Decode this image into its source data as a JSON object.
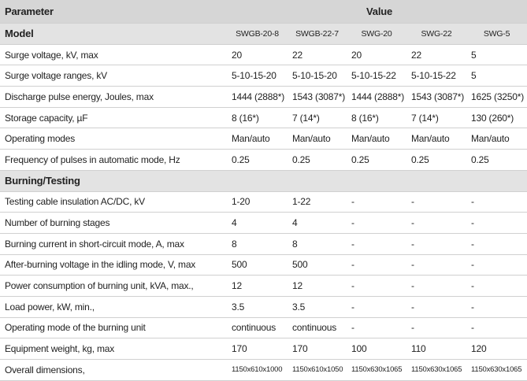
{
  "header": {
    "parameter": "Parameter",
    "value": "Value"
  },
  "sections": [
    {
      "title": "Model",
      "models": [
        "SWGB-20-8",
        "SWGB-22-7",
        "SWG-20",
        "SWG-22",
        "SWG-5"
      ],
      "rows": [
        {
          "label": "Surge voltage, kV, max",
          "cells": [
            "20",
            "22",
            "20",
            "22",
            "5"
          ]
        },
        {
          "label": "Surge voltage ranges, kV",
          "cells": [
            "5-10-15-20",
            "5-10-15-20",
            "5-10-15-22",
            "5-10-15-22",
            "5"
          ]
        },
        {
          "label": "Discharge pulse energy, Joules, max",
          "cells": [
            "1444 (2888*)",
            "1543 (3087*)",
            "1444 (2888*)",
            "1543 (3087*)",
            "1625 (3250*)"
          ]
        },
        {
          "label": "Storage capacity, µF",
          "cells": [
            "8 (16*)",
            "7 (14*)",
            "8 (16*)",
            "7 (14*)",
            "130 (260*)"
          ]
        },
        {
          "label": "Operating modes",
          "cells": [
            "Man/auto",
            "Man/auto",
            "Man/auto",
            "Man/auto",
            "Man/auto"
          ]
        },
        {
          "label": "Frequency of pulses in automatic mode, Hz",
          "cells": [
            "0.25",
            "0.25",
            "0.25",
            "0.25",
            "0.25"
          ]
        }
      ]
    },
    {
      "title": "Burning/Testing",
      "rows": [
        {
          "label": "Testing cable insulation AC/DC, kV",
          "cells": [
            "1-20",
            "1-22",
            "-",
            "-",
            "-"
          ]
        },
        {
          "label": "Number of burning stages",
          "cells": [
            "4",
            "4",
            "-",
            "-",
            "-"
          ]
        },
        {
          "label": "Burning current in short-circuit mode, A, max",
          "cells": [
            "8",
            "8",
            "-",
            "-",
            "-"
          ]
        },
        {
          "label": "After-burning voltage in the idling mode, V, max",
          "cells": [
            "500",
            "500",
            "-",
            "-",
            "-"
          ]
        },
        {
          "label": "Power consumption of burning unit, kVA, max.,",
          "cells": [
            "12",
            "12",
            "-",
            "-",
            "-"
          ]
        },
        {
          "label": "Load power, kW, min.,",
          "cells": [
            "3.5",
            "3.5",
            "-",
            "-",
            "-"
          ]
        },
        {
          "label": "Operating mode of the burning unit",
          "cells": [
            "continuous",
            "continuous",
            "-",
            "-",
            "-"
          ]
        },
        {
          "label": "Equipment weight, kg, max",
          "cells": [
            "170",
            "170",
            "100",
            "110",
            "120"
          ]
        },
        {
          "label": "Overall dimensions,",
          "cells": [
            "1150x610x1000",
            "1150x610x1050",
            "1150x630x1065",
            "1150x630x1065",
            "1150x630x1065"
          ]
        }
      ]
    }
  ]
}
